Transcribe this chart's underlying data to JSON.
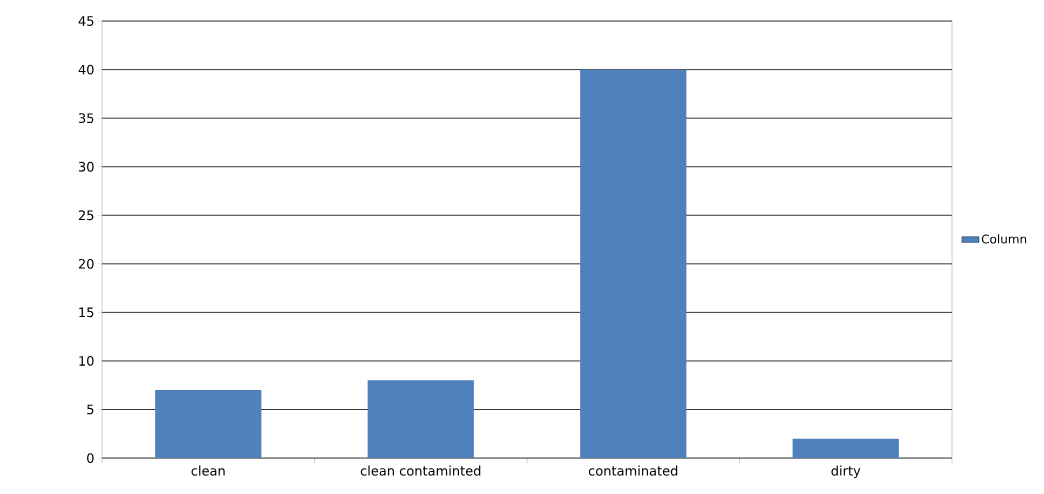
{
  "chart_data": {
    "type": "bar",
    "categories": [
      "clean",
      "clean contaminted",
      "contaminated",
      "dirty"
    ],
    "series": [
      {
        "name": "Column",
        "color": "#4f81bd",
        "values": [
          7,
          8,
          40,
          2
        ]
      }
    ],
    "ylim": [
      0,
      45
    ],
    "yticks": [
      0,
      5,
      10,
      15,
      20,
      25,
      30,
      35,
      40,
      45
    ],
    "grid": "y",
    "legend": "right"
  }
}
